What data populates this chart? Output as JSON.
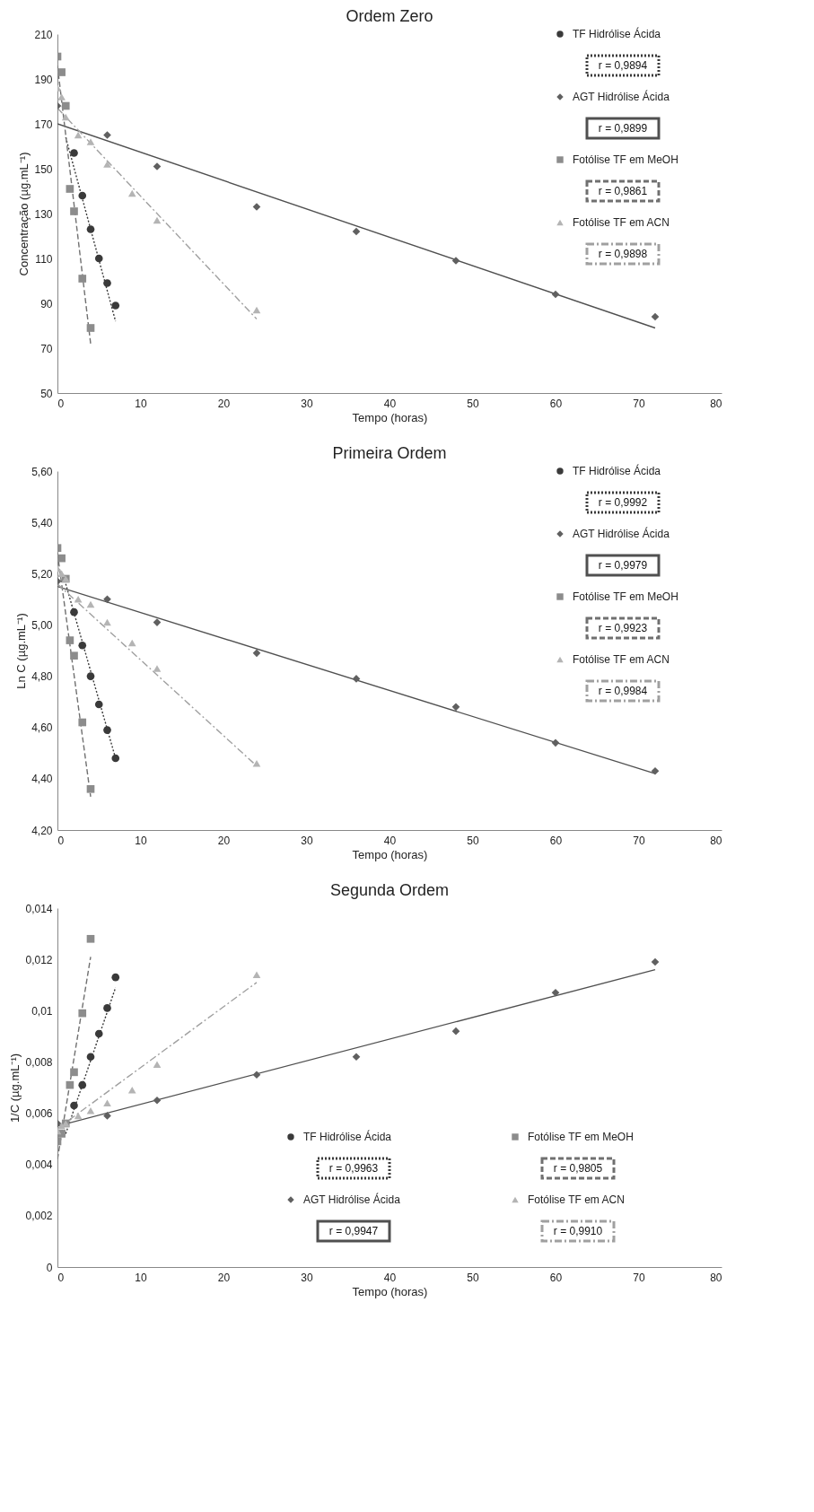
{
  "chart_data": [
    {
      "type": "scatter",
      "title": "Ordem Zero",
      "xlabel": "Tempo (horas)",
      "ylabel": "Concentração (µg.mL⁻¹)",
      "xlim": [
        0,
        80
      ],
      "xticks": [
        0,
        10,
        20,
        30,
        40,
        50,
        60,
        70,
        80
      ],
      "ylim": [
        50,
        210
      ],
      "yticks": [
        50,
        70,
        90,
        110,
        130,
        150,
        170,
        190,
        210
      ],
      "grid": false,
      "legend": "top right",
      "series": [
        {
          "name": "TF Hidrólise Ácida",
          "color": "#3a3a3a",
          "marker": "circle",
          "x": [
            2,
            3,
            4,
            5,
            6,
            7
          ],
          "values": [
            157,
            138,
            123,
            110,
            99,
            89
          ]
        },
        {
          "name": "AGT Hidrólise Ácida",
          "color": "#606060",
          "marker": "diamond",
          "x": [
            0,
            6,
            12,
            24,
            36,
            48,
            60,
            72
          ],
          "values": [
            178,
            165,
            151,
            133,
            122,
            109,
            94,
            84
          ]
        },
        {
          "name": "Fotólise TF em MeOH",
          "color": "#8c8c8c",
          "marker": "square",
          "x": [
            0,
            0.5,
            1,
            1.5,
            2,
            3,
            4
          ],
          "values": [
            200,
            193,
            178,
            141,
            131,
            101,
            79
          ]
        },
        {
          "name": "Fotólise TF em ACN",
          "color": "#b4b4b4",
          "marker": "triangle",
          "x": [
            0,
            0.5,
            1,
            2.5,
            4,
            6,
            9,
            12,
            24
          ],
          "values": [
            186,
            182,
            173,
            165,
            162,
            152,
            139,
            127,
            87
          ]
        },
        {
          "type": "line",
          "color": "#3a3a3a",
          "line_style": "dotted",
          "marker": "none",
          "x": [
            1,
            7
          ],
          "values": [
            164,
            82
          ]
        },
        {
          "type": "line",
          "color": "#505050",
          "line_style": "solid",
          "marker": "none",
          "x": [
            0,
            72
          ],
          "values": [
            170,
            79
          ]
        },
        {
          "type": "line",
          "color": "#707070",
          "line_style": "dashed",
          "marker": "none",
          "x": [
            0,
            4
          ],
          "values": [
            196,
            72
          ]
        },
        {
          "type": "line",
          "color": "#a0a0a0",
          "line_style": "dashdot",
          "marker": "none",
          "x": [
            0,
            24
          ],
          "values": [
            177,
            83
          ]
        }
      ],
      "annotations": [
        "r = 0,9894",
        "r = 0,9899",
        "r = 0,9861",
        "r = 0,9898"
      ]
    },
    {
      "type": "scatter",
      "title": "Primeira Ordem",
      "xlabel": "Tempo (horas)",
      "ylabel": "Ln C (µg.mL⁻¹)",
      "xlim": [
        0,
        80
      ],
      "xticks": [
        0,
        10,
        20,
        30,
        40,
        50,
        60,
        70,
        80
      ],
      "ylim": [
        4.2,
        5.6
      ],
      "yticks": [
        {
          "value": 4.2,
          "label": "4,20"
        },
        {
          "value": 4.4,
          "label": "4,40"
        },
        {
          "value": 4.6,
          "label": "4,60"
        },
        {
          "value": 4.8,
          "label": "4,80"
        },
        {
          "value": 5.0,
          "label": "5,00"
        },
        {
          "value": 5.2,
          "label": "5,20"
        },
        {
          "value": 5.4,
          "label": "5,40"
        },
        {
          "value": 5.6,
          "label": "5,60"
        }
      ],
      "grid": false,
      "legend": "top right",
      "series": [
        {
          "name": "TF Hidrólise Ácida",
          "color": "#3a3a3a",
          "marker": "circle",
          "x": [
            2,
            3,
            4,
            5,
            6,
            7
          ],
          "values": [
            5.05,
            4.92,
            4.8,
            4.69,
            4.59,
            4.48
          ]
        },
        {
          "name": "AGT Hidrólise Ácida",
          "color": "#606060",
          "marker": "diamond",
          "x": [
            0,
            6,
            12,
            24,
            36,
            48,
            60,
            72
          ],
          "values": [
            5.17,
            5.1,
            5.01,
            4.89,
            4.79,
            4.68,
            4.54,
            4.43
          ]
        },
        {
          "name": "Fotólise TF em MeOH",
          "color": "#8c8c8c",
          "marker": "square",
          "x": [
            0,
            0.5,
            1,
            1.5,
            2,
            3,
            4
          ],
          "values": [
            5.3,
            5.26,
            5.18,
            4.94,
            4.88,
            4.62,
            4.36
          ]
        },
        {
          "name": "Fotólise TF em ACN",
          "color": "#b4b4b4",
          "marker": "triangle",
          "x": [
            0,
            0.5,
            1,
            2.5,
            4,
            6,
            9,
            12,
            24
          ],
          "values": [
            5.22,
            5.2,
            5.18,
            5.1,
            5.08,
            5.01,
            4.93,
            4.83,
            4.46
          ]
        },
        {
          "type": "line",
          "color": "#3a3a3a",
          "line_style": "dotted",
          "marker": "none",
          "x": [
            1,
            7
          ],
          "values": [
            5.16,
            4.48
          ]
        },
        {
          "type": "line",
          "color": "#505050",
          "line_style": "solid",
          "marker": "none",
          "x": [
            0,
            72
          ],
          "values": [
            5.15,
            4.42
          ]
        },
        {
          "type": "line",
          "color": "#707070",
          "line_style": "dashed",
          "marker": "none",
          "x": [
            0,
            4
          ],
          "values": [
            5.28,
            4.33
          ]
        },
        {
          "type": "line",
          "color": "#a0a0a0",
          "line_style": "dashdot",
          "marker": "none",
          "x": [
            0,
            24
          ],
          "values": [
            5.16,
            4.45
          ]
        }
      ],
      "annotations": [
        "r = 0,9992",
        "r = 0,9979",
        "r = 0,9923",
        "r = 0,9984"
      ]
    },
    {
      "type": "scatter",
      "title": "Segunda Ordem",
      "xlabel": "Tempo (horas)",
      "ylabel": "1/C (µg.mL⁻¹)",
      "xlim": [
        0,
        80
      ],
      "xticks": [
        0,
        10,
        20,
        30,
        40,
        50,
        60,
        70,
        80
      ],
      "ylim": [
        0,
        0.014
      ],
      "yticks": [
        0,
        {
          "value": 0.002,
          "label": "0,002"
        },
        {
          "value": 0.004,
          "label": "0,004"
        },
        {
          "value": 0.006,
          "label": "0,006"
        },
        {
          "value": 0.008,
          "label": "0,008"
        },
        {
          "value": 0.01,
          "label": "0,01"
        },
        {
          "value": 0.012,
          "label": "0,012"
        },
        {
          "value": 0.014,
          "label": "0,014"
        }
      ],
      "grid": false,
      "legend": "bottom right",
      "series": [
        {
          "name": "TF Hidrólise Ácida",
          "color": "#3a3a3a",
          "marker": "circle",
          "x": [
            2,
            3,
            4,
            5,
            6,
            7
          ],
          "values": [
            0.0063,
            0.0071,
            0.0082,
            0.0091,
            0.0101,
            0.0113
          ]
        },
        {
          "name": "AGT Hidrólise Ácida",
          "color": "#606060",
          "marker": "diamond",
          "x": [
            0,
            6,
            12,
            24,
            36,
            48,
            60,
            72
          ],
          "values": [
            0.0056,
            0.0059,
            0.0065,
            0.0075,
            0.0082,
            0.0092,
            0.0107,
            0.0119
          ]
        },
        {
          "name": "Fotólise TF em MeOH",
          "color": "#8c8c8c",
          "marker": "square",
          "x": [
            0,
            0.5,
            1,
            1.5,
            2,
            3,
            4
          ],
          "values": [
            0.0049,
            0.0052,
            0.0056,
            0.0071,
            0.0076,
            0.0099,
            0.0128
          ]
        },
        {
          "name": "Fotólise TF em ACN",
          "color": "#b4b4b4",
          "marker": "triangle",
          "x": [
            0,
            0.5,
            1,
            2.5,
            4,
            6,
            9,
            12,
            24
          ],
          "values": [
            0.0053,
            0.0055,
            0.0056,
            0.0059,
            0.0061,
            0.0064,
            0.0069,
            0.0079,
            0.0114
          ]
        },
        {
          "type": "line",
          "color": "#3a3a3a",
          "line_style": "dotted",
          "marker": "none",
          "x": [
            1,
            7
          ],
          "values": [
            0.0052,
            0.0109
          ]
        },
        {
          "type": "line",
          "color": "#505050",
          "line_style": "solid",
          "marker": "none",
          "x": [
            0,
            72
          ],
          "values": [
            0.0055,
            0.0116
          ]
        },
        {
          "type": "line",
          "color": "#707070",
          "line_style": "dashed",
          "marker": "none",
          "x": [
            0,
            4
          ],
          "values": [
            0.0042,
            0.0121
          ]
        },
        {
          "type": "line",
          "color": "#a0a0a0",
          "line_style": "dashdot",
          "marker": "none",
          "x": [
            0,
            24
          ],
          "values": [
            0.0054,
            0.0111
          ]
        }
      ],
      "annotations": [
        "r = 0,9963",
        "r = 0,9947",
        "r = 0,9805",
        "r = 0,9910"
      ]
    }
  ]
}
